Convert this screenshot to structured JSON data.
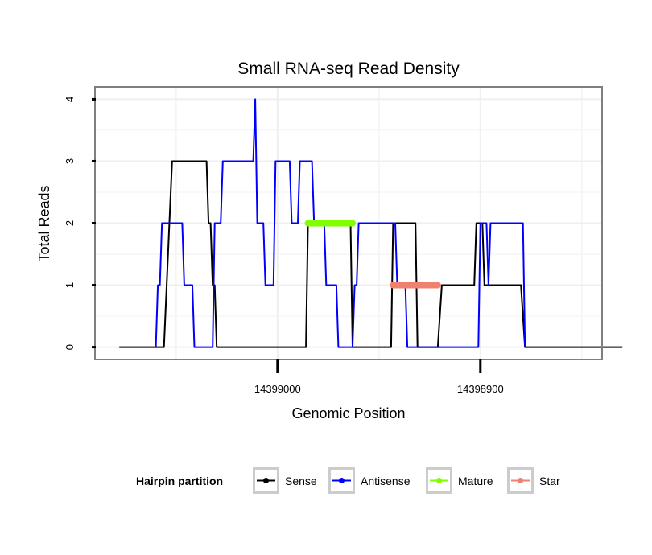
{
  "chart_data": {
    "type": "line",
    "title": "Small RNA-seq Read Density",
    "xlabel": "Genomic Position",
    "ylabel": "Total Reads",
    "x_reversed": true,
    "xlim": [
      14399090,
      14398840
    ],
    "ylim": [
      -0.2,
      4.2
    ],
    "x_ticks": [
      14399000,
      14398900
    ],
    "x_tick_labels": [
      "14399000",
      "14398900"
    ],
    "y_ticks": [
      0,
      1,
      2,
      3,
      4
    ],
    "y_tick_labels": [
      "0",
      "1",
      "2",
      "3",
      "4"
    ],
    "legend_title": "Hairpin partition",
    "legend_position": "bottom",
    "series": [
      {
        "name": "Sense",
        "color": "#000000",
        "points": [
          [
            14399078,
            0
          ],
          [
            14399056,
            0
          ],
          [
            14399052,
            3
          ],
          [
            14399035,
            3
          ],
          [
            14399034,
            2
          ],
          [
            14399033,
            2
          ],
          [
            14399032,
            1
          ],
          [
            14399031,
            1
          ],
          [
            14399030,
            0
          ],
          [
            14398986,
            0
          ],
          [
            14398985,
            2
          ],
          [
            14398964,
            2
          ],
          [
            14398963,
            0
          ],
          [
            14398944,
            0
          ],
          [
            14398943,
            2
          ],
          [
            14398932,
            2
          ],
          [
            14398931,
            0
          ],
          [
            14398921,
            0
          ],
          [
            14398919,
            1
          ],
          [
            14398903,
            1
          ],
          [
            14398902,
            2
          ],
          [
            14398899,
            2
          ],
          [
            14398898,
            1
          ],
          [
            14398880,
            1
          ],
          [
            14398878,
            0
          ],
          [
            14398830,
            0
          ]
        ]
      },
      {
        "name": "Antisense",
        "color": "#0000ff",
        "points": [
          [
            14399060,
            0
          ],
          [
            14399059,
            1
          ],
          [
            14399058,
            1
          ],
          [
            14399057,
            2
          ],
          [
            14399047,
            2
          ],
          [
            14399046,
            1
          ],
          [
            14399042,
            1
          ],
          [
            14399041,
            0
          ],
          [
            14399032,
            0
          ],
          [
            14399031,
            2
          ],
          [
            14399028,
            2
          ],
          [
            14399027,
            3
          ],
          [
            14399012,
            3
          ],
          [
            14399011,
            4
          ],
          [
            14399010,
            2
          ],
          [
            14399007,
            2
          ],
          [
            14399006,
            1
          ],
          [
            14399002,
            1
          ],
          [
            14399001,
            3
          ],
          [
            14398994,
            3
          ],
          [
            14398993,
            2
          ],
          [
            14398990,
            2
          ],
          [
            14398989,
            3
          ],
          [
            14398983,
            3
          ],
          [
            14398982,
            2
          ],
          [
            14398977,
            2
          ],
          [
            14398976,
            1
          ],
          [
            14398971,
            1
          ],
          [
            14398970,
            0
          ],
          [
            14398963,
            0
          ],
          [
            14398962,
            1
          ],
          [
            14398961,
            1
          ],
          [
            14398960,
            2
          ],
          [
            14398942,
            2
          ],
          [
            14398941,
            1
          ],
          [
            14398937,
            1
          ],
          [
            14398936,
            0
          ],
          [
            14398901,
            0
          ],
          [
            14398900,
            2
          ],
          [
            14398897,
            2
          ],
          [
            14398896,
            1
          ],
          [
            14398895,
            2
          ],
          [
            14398879,
            2
          ],
          [
            14398878,
            0
          ]
        ]
      },
      {
        "name": "Mature",
        "color": "#7fff00",
        "points": [
          [
            14398985,
            2
          ],
          [
            14398963,
            2
          ]
        ]
      },
      {
        "name": "Star",
        "color": "#f08070",
        "points": [
          [
            14398943,
            1
          ],
          [
            14398921,
            1
          ]
        ]
      }
    ]
  }
}
